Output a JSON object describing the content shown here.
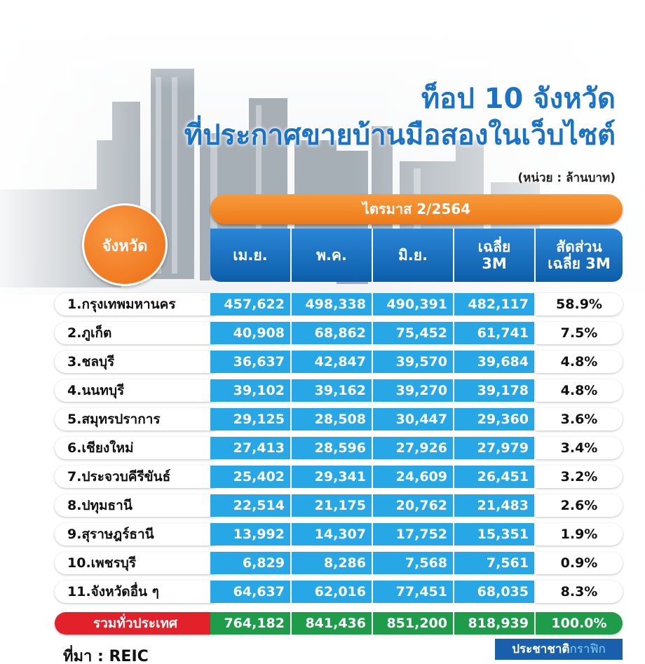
{
  "title_line1": "ท็อป 10 จังหวัด",
  "title_line2": "ที่ประกาศขายบ้านมือสองในเว็บไซต์",
  "unit": "(หน่วย : ล้านบาท)",
  "quarter": "ไตรมาส 2/2564",
  "province_header": "จังหวัด",
  "columns": [
    "เม.ย.",
    "พ.ค.",
    "มิ.ย.",
    "เฉลี่ย 3M",
    "สัดส่วน เฉลี่ย 3M"
  ],
  "rows": [
    {
      "name": "1.กรุงเทพมหานคร",
      "apr": "457,622",
      "may": "498,338",
      "jun": "490,391",
      "avg": "482,117",
      "share": "58.9%"
    },
    {
      "name": "2.ภูเก็ต",
      "apr": "40,908",
      "may": "68,862",
      "jun": "75,452",
      "avg": "61,741",
      "share": "7.5%"
    },
    {
      "name": "3.ชลบุรี",
      "apr": "36,637",
      "may": "42,847",
      "jun": "39,570",
      "avg": "39,684",
      "share": "4.8%"
    },
    {
      "name": "4.นนทบุรี",
      "apr": "39,102",
      "may": "39,162",
      "jun": "39,270",
      "avg": "39,178",
      "share": "4.8%"
    },
    {
      "name": "5.สมุทรปราการ",
      "apr": "29,125",
      "may": "28,508",
      "jun": "30,447",
      "avg": "29,360",
      "share": "3.6%"
    },
    {
      "name": "6.เชียงใหม่",
      "apr": "27,413",
      "may": "28,596",
      "jun": "27,926",
      "avg": "27,979",
      "share": "3.4%"
    },
    {
      "name": "7.ประจวบคีรีขันธ์",
      "apr": "25,402",
      "may": "29,341",
      "jun": "24,609",
      "avg": "26,451",
      "share": "3.2%"
    },
    {
      "name": "8.ปทุมธานี",
      "apr": "22,514",
      "may": "21,175",
      "jun": "20,762",
      "avg": "21,483",
      "share": "2.6%"
    },
    {
      "name": "9.สุราษฎร์ธานี",
      "apr": "13,992",
      "may": "14,307",
      "jun": "17,752",
      "avg": "15,351",
      "share": "1.9%"
    },
    {
      "name": "10.เพชรบุรี",
      "apr": "6,829",
      "may": "8,286",
      "jun": "7,568",
      "avg": "7,561",
      "share": "0.9%"
    },
    {
      "name": "11.จังหวัดอื่น ๆ",
      "apr": "64,637",
      "may": "62,016",
      "jun": "77,451",
      "avg": "68,035",
      "share": "8.3%"
    }
  ],
  "total": {
    "name": "รวมทั่วประเทศ",
    "apr": "764,182",
    "may": "841,436",
    "jun": "851,200",
    "avg": "818,939",
    "share": "100.0%"
  },
  "source": "ที่มา : REIC",
  "credit": {
    "main": "ประชาชาติ",
    "accent": "กราฟิก"
  },
  "colors": {
    "header_blue": "#1a73c9",
    "cell_blue": "#27a7e6",
    "orange": "#ee7a18",
    "total_red": "#e3212b",
    "total_green": "#1e9c4a"
  }
}
